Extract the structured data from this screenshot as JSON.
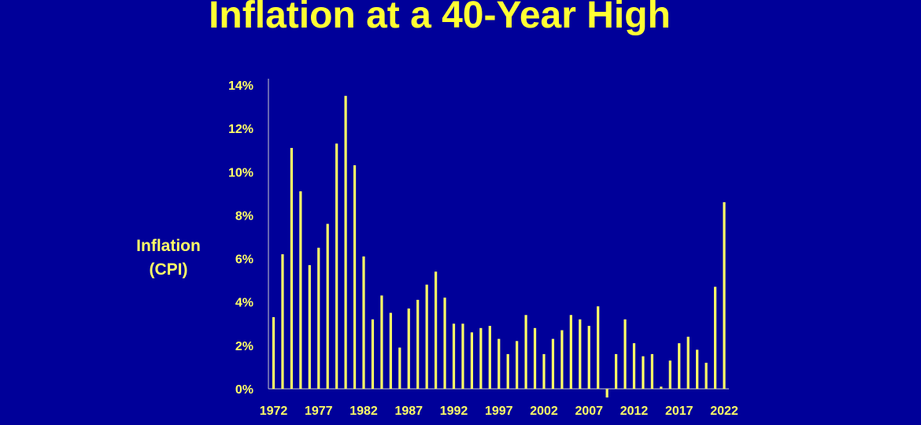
{
  "slide": {
    "title": "Inflation at a 40-Year High"
  },
  "chart_data": {
    "type": "bar",
    "title": "Inflation at a 40-Year High",
    "ylabel_lines": [
      "Inflation",
      "(CPI)"
    ],
    "xlabel": "",
    "ylim": [
      0,
      14
    ],
    "y_ticks": [
      "0%",
      "2%",
      "4%",
      "6%",
      "8%",
      "10%",
      "12%",
      "14%"
    ],
    "x_tick_labels": [
      "1972",
      "1977",
      "1982",
      "1987",
      "1992",
      "1997",
      "2002",
      "2007",
      "2012",
      "2017",
      "2022"
    ],
    "categories": [
      1972,
      1973,
      1974,
      1975,
      1976,
      1977,
      1978,
      1979,
      1980,
      1981,
      1982,
      1983,
      1984,
      1985,
      1986,
      1987,
      1988,
      1989,
      1990,
      1991,
      1992,
      1993,
      1994,
      1995,
      1996,
      1997,
      1998,
      1999,
      2000,
      2001,
      2002,
      2003,
      2004,
      2005,
      2006,
      2007,
      2008,
      2009,
      2010,
      2011,
      2012,
      2013,
      2014,
      2015,
      2016,
      2017,
      2018,
      2019,
      2020,
      2021,
      2022
    ],
    "values": [
      3.3,
      6.2,
      11.1,
      9.1,
      5.7,
      6.5,
      7.6,
      11.3,
      13.5,
      10.3,
      6.1,
      3.2,
      4.3,
      3.5,
      1.9,
      3.7,
      4.1,
      4.8,
      5.4,
      4.2,
      3.0,
      3.0,
      2.6,
      2.8,
      2.9,
      2.3,
      1.6,
      2.2,
      3.4,
      2.8,
      1.6,
      2.3,
      2.7,
      3.4,
      3.2,
      2.9,
      3.8,
      -0.4,
      1.6,
      3.2,
      2.1,
      1.5,
      1.6,
      0.1,
      1.3,
      2.1,
      2.4,
      1.8,
      1.2,
      4.7,
      8.6
    ],
    "grid": false,
    "legend": "none",
    "colors": {
      "background": "#000099",
      "bar": "#FFFF66",
      "title": "#FFFF33",
      "axis": "#CCCCCC"
    }
  }
}
